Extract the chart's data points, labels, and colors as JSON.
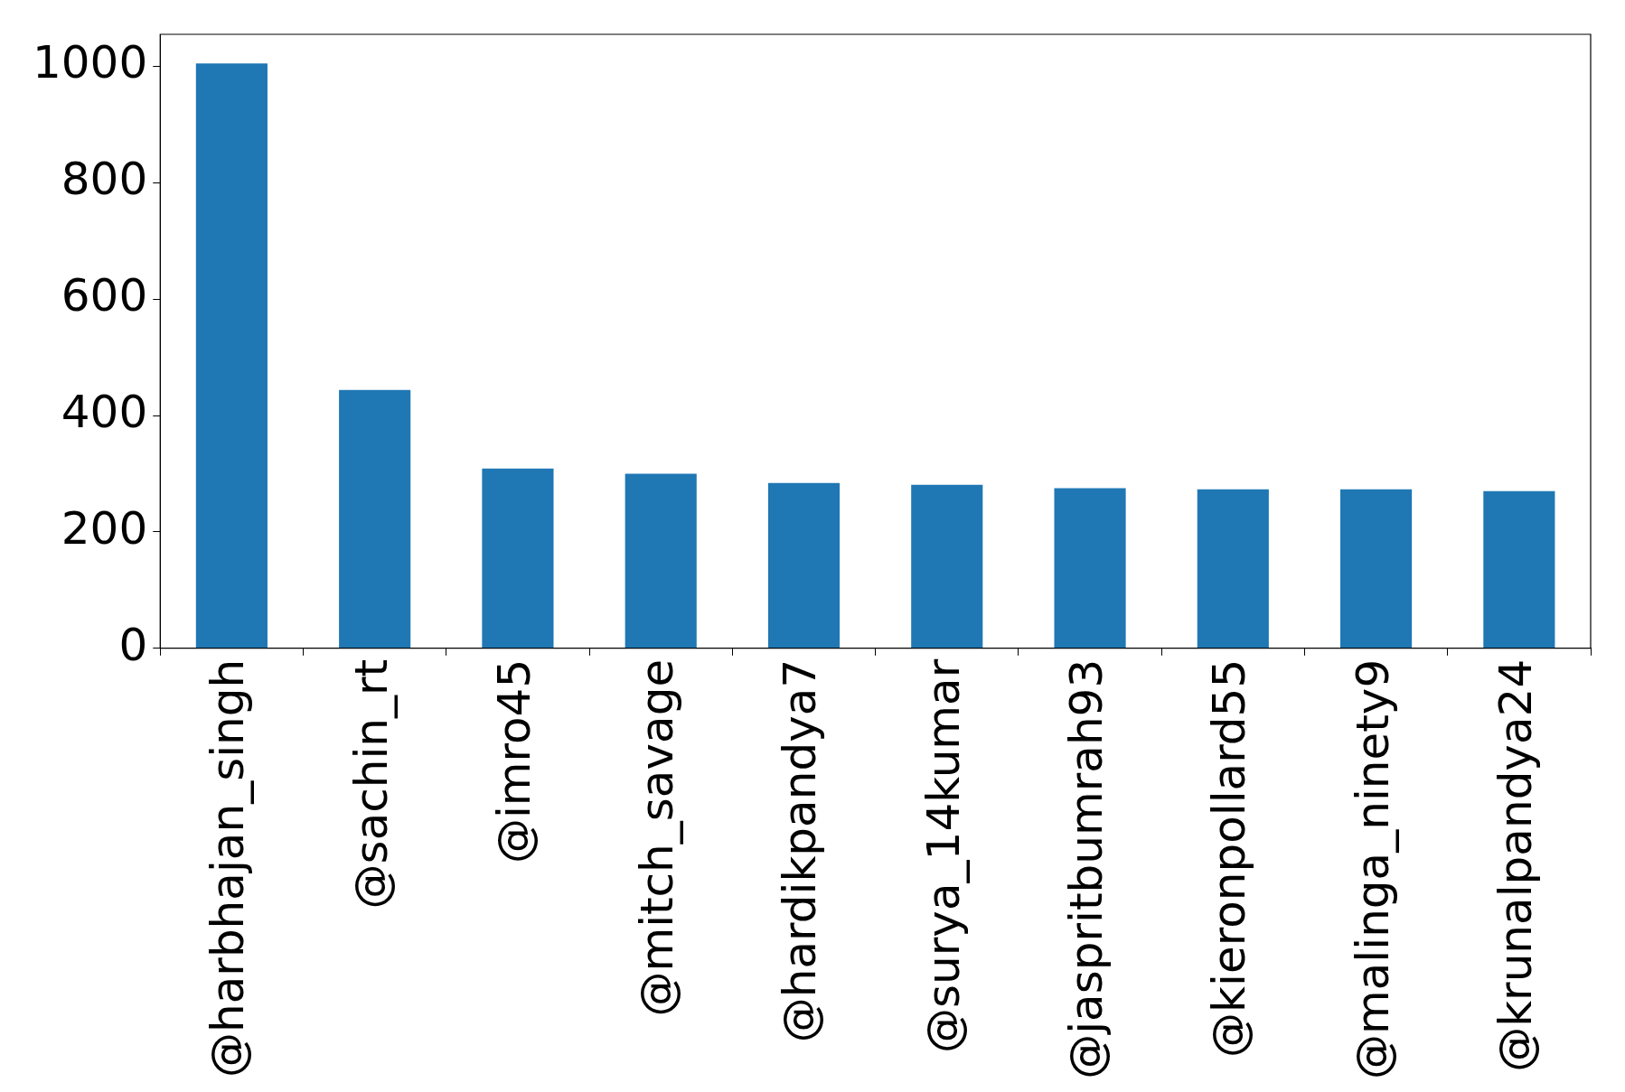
{
  "chart_data": {
    "type": "bar",
    "categories": [
      "@harbhajan_singh",
      "@sachin_rt",
      "@imro45",
      "@mitch_savage",
      "@hardikpandya7",
      "@surya_14kumar",
      "@jaspritbumrah93",
      "@kieronpollard55",
      "@malinga_ninety9",
      "@krunalpandya24"
    ],
    "values": [
      1005,
      444,
      309,
      300,
      284,
      281,
      275,
      273,
      273,
      270
    ],
    "color": "#1f77b4",
    "ylim": [
      0,
      1055
    ],
    "yticks": [
      0,
      200,
      400,
      600,
      800,
      1000
    ],
    "grid": false,
    "legend": false
  }
}
